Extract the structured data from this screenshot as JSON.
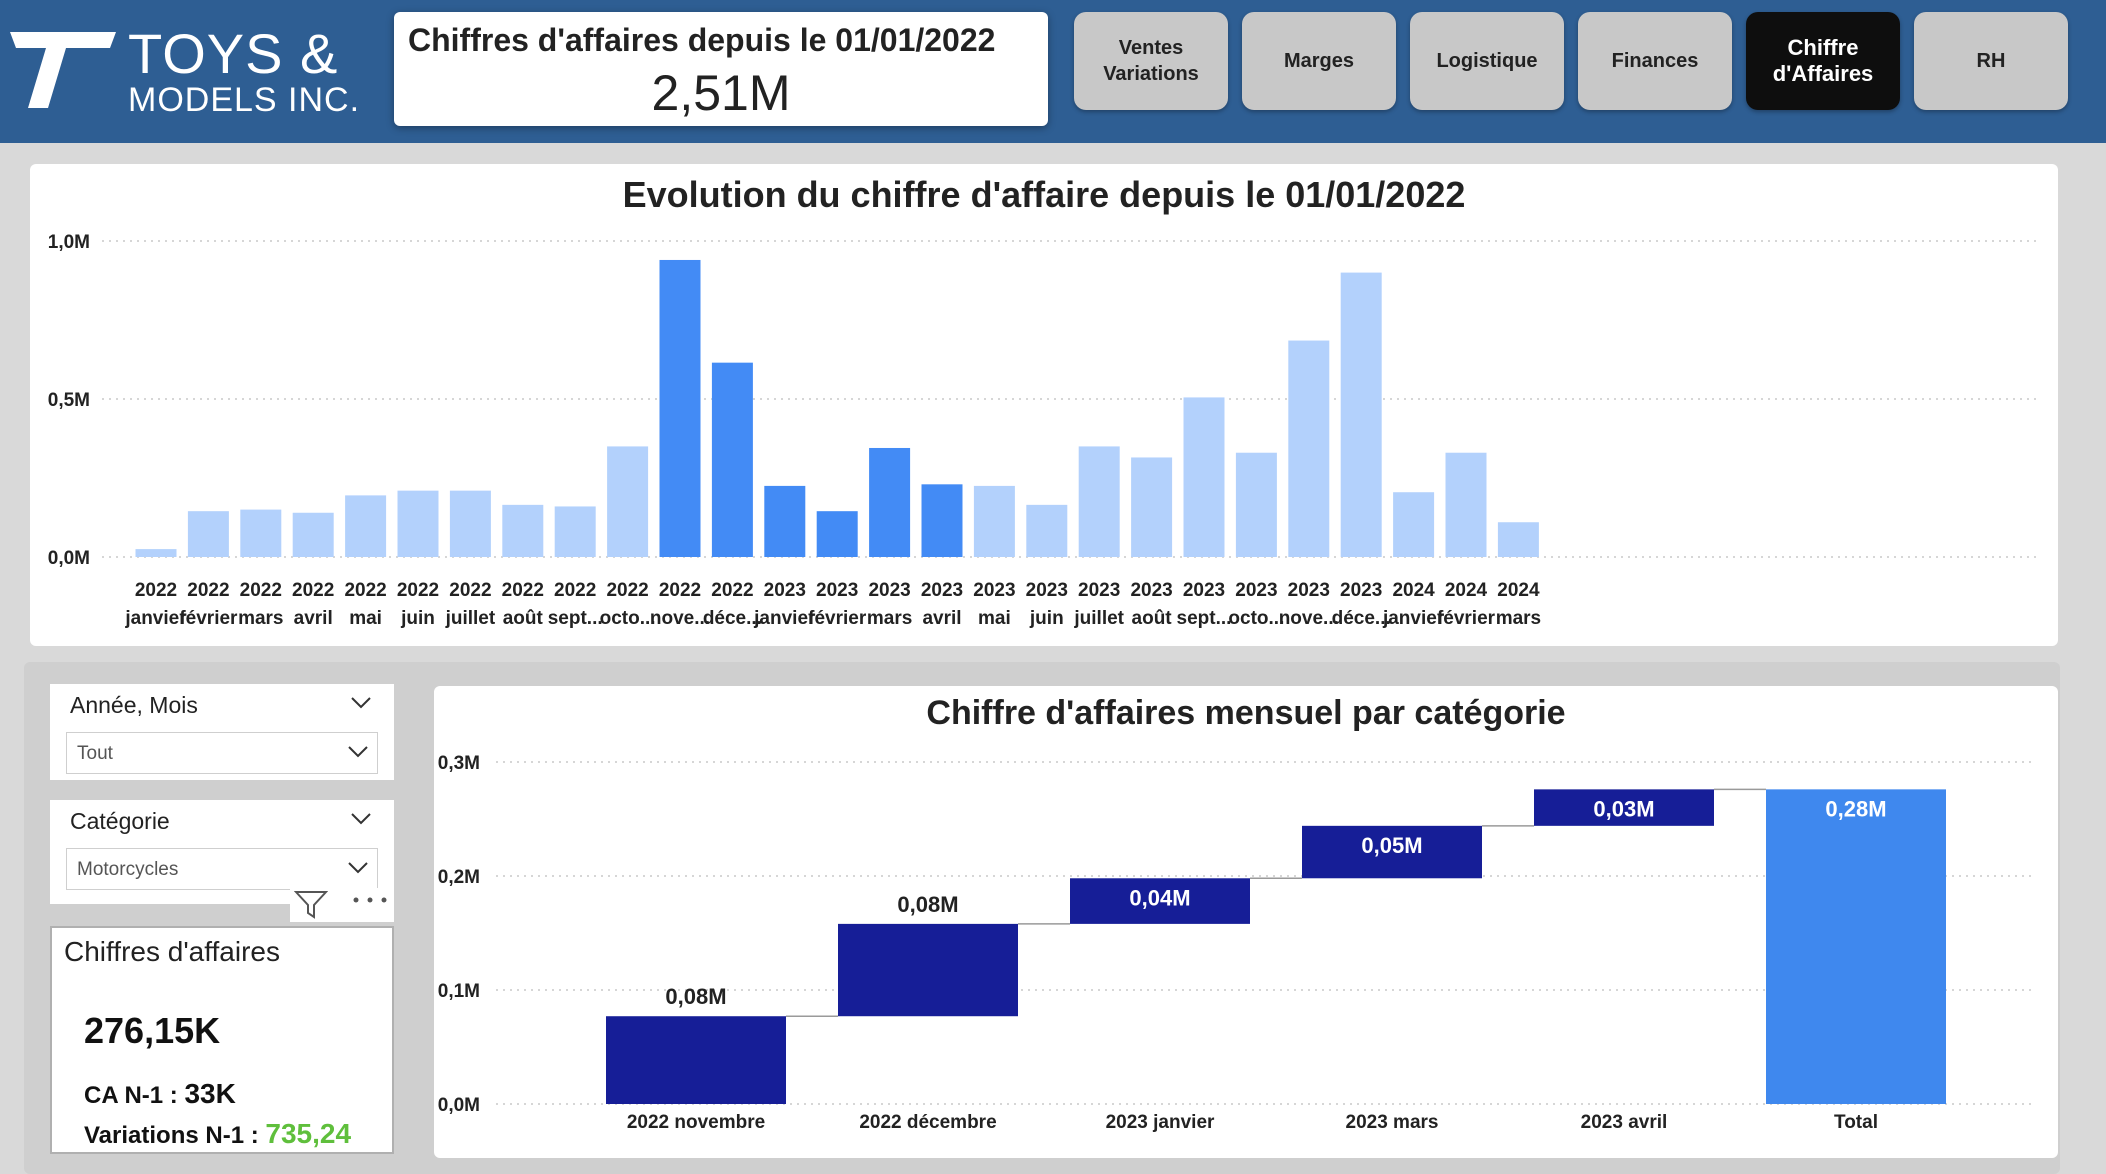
{
  "header": {
    "logo_line1": "TOYS &",
    "logo_line2": "MODELS INC.",
    "kpi_title": "Chiffres d'affaires depuis le 01/01/2022",
    "kpi_value": "2,51M",
    "nav": [
      {
        "line1": "Ventes",
        "line2": "Variations",
        "active": false
      },
      {
        "line1": "Marges",
        "line2": "",
        "active": false
      },
      {
        "line1": "Logistique",
        "line2": "",
        "active": false
      },
      {
        "line1": "Finances",
        "line2": "",
        "active": false
      },
      {
        "line1": "Chiffre",
        "line2": "d'Affaires",
        "active": true
      },
      {
        "line1": "RH",
        "line2": "",
        "active": false
      }
    ]
  },
  "slicers": {
    "year_month": {
      "label": "Année, Mois",
      "value": "Tout"
    },
    "category": {
      "label": "Catégorie",
      "value": "Motorcycles"
    }
  },
  "card": {
    "title": "Chiffres d'affaires",
    "value": "276,15K",
    "ca_prev_label": "CA N-1 : ",
    "ca_prev_value": "33K",
    "var_label": "Variations N-1 : ",
    "var_value": "735,24"
  },
  "colors": {
    "light_bar": "#b3d1fc",
    "highlight_bar": "#438bf5",
    "dark_bar": "#161e97",
    "total_bar": "#3f88ee"
  },
  "chart_data": [
    {
      "type": "bar",
      "title": "Evolution du chiffre d'affaire depuis le 01/01/2022",
      "yticks": [
        "0,0M",
        "0,5M",
        "1,0M"
      ],
      "ylim": [
        0,
        1.0
      ],
      "grid": true,
      "categories": [
        {
          "year": "2022",
          "month": "janvier"
        },
        {
          "year": "2022",
          "month": "février"
        },
        {
          "year": "2022",
          "month": "mars"
        },
        {
          "year": "2022",
          "month": "avril"
        },
        {
          "year": "2022",
          "month": "mai"
        },
        {
          "year": "2022",
          "month": "juin"
        },
        {
          "year": "2022",
          "month": "juillet"
        },
        {
          "year": "2022",
          "month": "août"
        },
        {
          "year": "2022",
          "month": "sept..."
        },
        {
          "year": "2022",
          "month": "octo..."
        },
        {
          "year": "2022",
          "month": "nove..."
        },
        {
          "year": "2022",
          "month": "déce..."
        },
        {
          "year": "2023",
          "month": "janvier"
        },
        {
          "year": "2023",
          "month": "février"
        },
        {
          "year": "2023",
          "month": "mars"
        },
        {
          "year": "2023",
          "month": "avril"
        },
        {
          "year": "2023",
          "month": "mai"
        },
        {
          "year": "2023",
          "month": "juin"
        },
        {
          "year": "2023",
          "month": "juillet"
        },
        {
          "year": "2023",
          "month": "août"
        },
        {
          "year": "2023",
          "month": "sept..."
        },
        {
          "year": "2023",
          "month": "octo..."
        },
        {
          "year": "2023",
          "month": "nove..."
        },
        {
          "year": "2023",
          "month": "déce..."
        },
        {
          "year": "2024",
          "month": "janvier"
        },
        {
          "year": "2024",
          "month": "février"
        },
        {
          "year": "2024",
          "month": "mars"
        }
      ],
      "values": [
        0.025,
        0.145,
        0.15,
        0.14,
        0.195,
        0.21,
        0.21,
        0.165,
        0.16,
        0.35,
        0.94,
        0.615,
        0.225,
        0.145,
        0.345,
        0.23,
        0.225,
        0.165,
        0.35,
        0.315,
        0.505,
        0.33,
        0.685,
        0.9,
        0.205,
        0.33,
        0.11
      ],
      "highlighted": [
        false,
        false,
        false,
        false,
        false,
        false,
        false,
        false,
        false,
        false,
        true,
        true,
        true,
        true,
        true,
        true,
        false,
        false,
        false,
        false,
        false,
        false,
        false,
        false,
        false,
        false,
        false
      ]
    },
    {
      "type": "waterfall",
      "title": "Chiffre d'affaires mensuel par catégorie",
      "yticks": [
        "0,0M",
        "0,1M",
        "0,2M",
        "0,3M"
      ],
      "ylim": [
        0,
        0.3
      ],
      "grid": true,
      "categories": [
        "2022 novembre",
        "2022 décembre",
        "2023 janvier",
        "2023 mars",
        "2023 avril",
        "Total"
      ],
      "values": [
        0.077,
        0.081,
        0.04,
        0.046,
        0.032,
        0.276
      ],
      "labels": [
        "0,08M",
        "0,08M",
        "0,04M",
        "0,05M",
        "0,03M",
        "0,28M"
      ]
    }
  ]
}
